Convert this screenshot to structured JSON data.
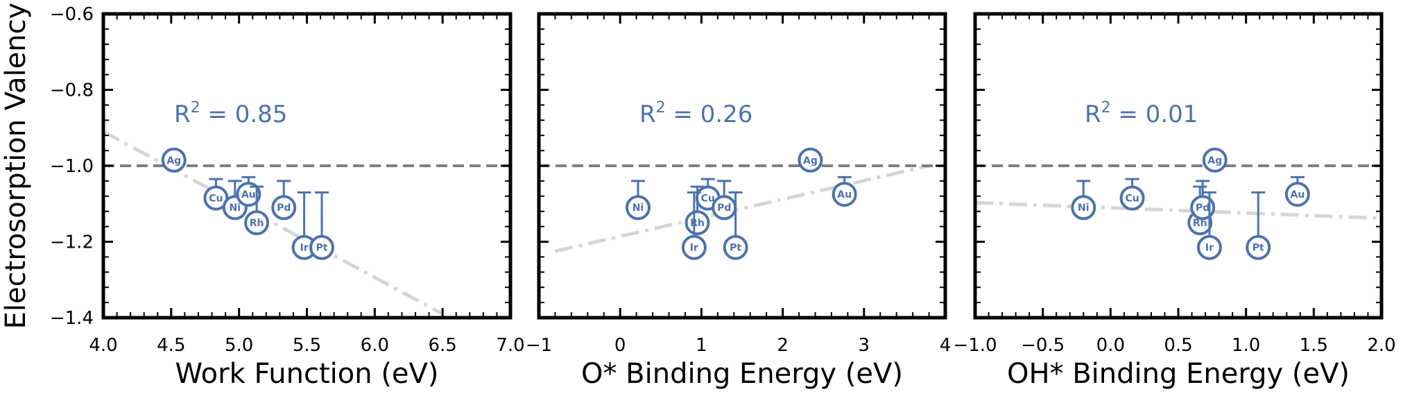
{
  "colors": {
    "marker": "#4c72b0",
    "fit": "#d6d6d6",
    "reference": "#7f7f7f",
    "axis": "#000000"
  },
  "chart_data": [
    {
      "type": "scatter",
      "xlabel": "Work Function (eV)",
      "ylabel": "Electrosorption Valency",
      "xlim": [
        4.0,
        7.0
      ],
      "ylim": [
        -1.4,
        -0.6
      ],
      "xticks": [
        "4.0",
        "4.5",
        "5.0",
        "5.5",
        "6.0",
        "6.5",
        "7.0"
      ],
      "yticks": [
        "−1.4",
        "−1.2",
        "−1.0",
        "−0.8",
        "−0.6"
      ],
      "r2_label": "R",
      "r2_value": "= 0.85",
      "reference_line_y": -1.0,
      "fit_line": [
        [
          4.0,
          -0.91
        ],
        [
          6.5,
          -1.39
        ]
      ],
      "points": [
        {
          "label": "Ag",
          "x": 4.52,
          "y": -0.985,
          "err_up": 0.0
        },
        {
          "label": "Cu",
          "x": 4.83,
          "y": -1.085,
          "err_up": 0.05
        },
        {
          "label": "Ni",
          "x": 4.97,
          "y": -1.11,
          "err_up": 0.07
        },
        {
          "label": "Au",
          "x": 5.07,
          "y": -1.075,
          "err_up": 0.045
        },
        {
          "label": "Rh",
          "x": 5.13,
          "y": -1.15,
          "err_up": 0.095
        },
        {
          "label": "Pd",
          "x": 5.33,
          "y": -1.11,
          "err_up": 0.07
        },
        {
          "label": "Ir",
          "x": 5.48,
          "y": -1.215,
          "err_up": 0.145
        },
        {
          "label": "Pt",
          "x": 5.61,
          "y": -1.215,
          "err_up": 0.145
        }
      ]
    },
    {
      "type": "scatter",
      "xlabel": "O* Binding Energy (eV)",
      "ylabel": "",
      "xlim": [
        -1,
        4
      ],
      "ylim": [
        -1.4,
        -0.6
      ],
      "xticks": [
        "−1",
        "0",
        "1",
        "2",
        "3",
        "4"
      ],
      "yticks": [],
      "r2_label": "R",
      "r2_value": "= 0.26",
      "reference_line_y": -1.0,
      "fit_line": [
        [
          -0.8,
          -1.225
        ],
        [
          3.8,
          -1.0
        ]
      ],
      "points": [
        {
          "label": "Ag",
          "x": 2.34,
          "y": -0.985,
          "err_up": 0.0
        },
        {
          "label": "Au",
          "x": 2.76,
          "y": -1.075,
          "err_up": 0.045
        },
        {
          "label": "Ni",
          "x": 0.22,
          "y": -1.11,
          "err_up": 0.07
        },
        {
          "label": "Cu",
          "x": 1.08,
          "y": -1.085,
          "err_up": 0.05
        },
        {
          "label": "Rh",
          "x": 0.95,
          "y": -1.15,
          "err_up": 0.095
        },
        {
          "label": "Pd",
          "x": 1.28,
          "y": -1.11,
          "err_up": 0.07
        },
        {
          "label": "Ir",
          "x": 0.91,
          "y": -1.215,
          "err_up": 0.145
        },
        {
          "label": "Pt",
          "x": 1.42,
          "y": -1.215,
          "err_up": 0.145
        }
      ]
    },
    {
      "type": "scatter",
      "xlabel": "OH* Binding Energy (eV)",
      "ylabel": "",
      "xlim": [
        -1.0,
        2.0
      ],
      "ylim": [
        -1.4,
        -0.6
      ],
      "xticks": [
        "−1.0",
        "−0.5",
        "0.0",
        "0.5",
        "1.0",
        "1.5",
        "2.0"
      ],
      "yticks": [],
      "r2_label": "R",
      "r2_value": "= 0.01",
      "reference_line_y": -1.0,
      "fit_line": [
        [
          -1.0,
          -1.097
        ],
        [
          2.0,
          -1.138
        ]
      ],
      "points": [
        {
          "label": "Ag",
          "x": 0.77,
          "y": -0.985,
          "err_up": 0.0
        },
        {
          "label": "Au",
          "x": 1.38,
          "y": -1.075,
          "err_up": 0.045
        },
        {
          "label": "Ni",
          "x": -0.2,
          "y": -1.11,
          "err_up": 0.07
        },
        {
          "label": "Cu",
          "x": 0.16,
          "y": -1.085,
          "err_up": 0.05
        },
        {
          "label": "Rh",
          "x": 0.66,
          "y": -1.15,
          "err_up": 0.095
        },
        {
          "label": "Pd",
          "x": 0.68,
          "y": -1.11,
          "err_up": 0.07
        },
        {
          "label": "Ir",
          "x": 0.73,
          "y": -1.215,
          "err_up": 0.145
        },
        {
          "label": "Pt",
          "x": 1.09,
          "y": -1.215,
          "err_up": 0.145
        }
      ]
    }
  ]
}
